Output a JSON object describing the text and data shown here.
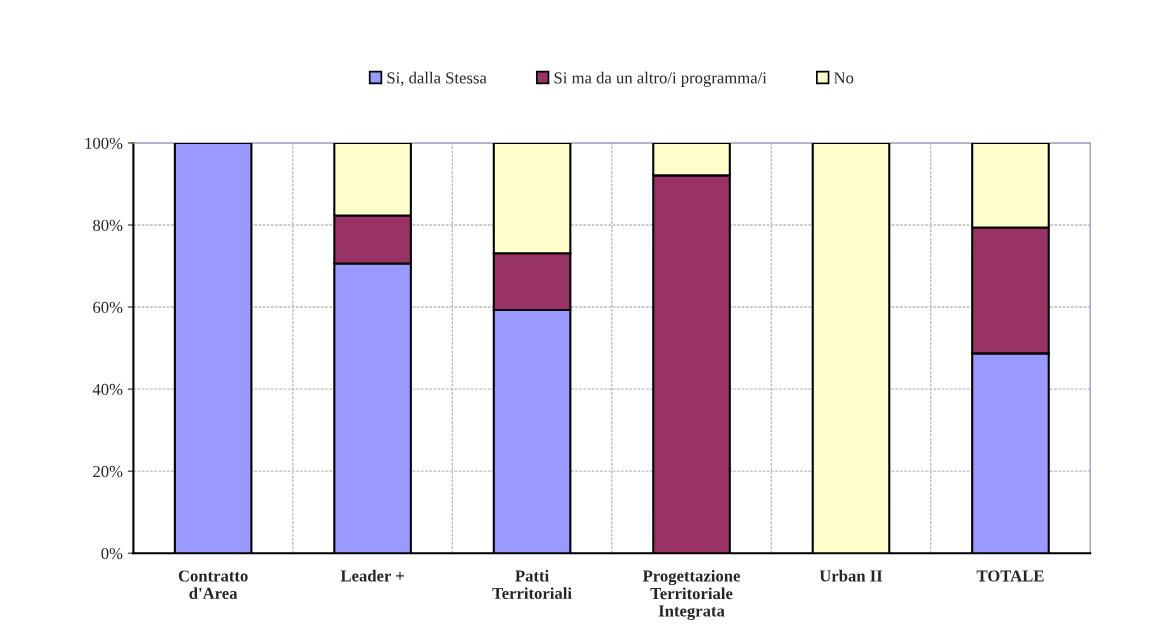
{
  "chart_data": {
    "type": "bar",
    "stacked": true,
    "categories": [
      "Contratto\nd'Area",
      "Leader +",
      "Patti\nTerritoriali",
      "Progettazione\nTerritoriale\nIntegrata",
      "Urban II",
      "TOTALE"
    ],
    "series": [
      {
        "name": "Si, dalla Stessa",
        "color": "#9999ff",
        "values": [
          100,
          70.6,
          59.3,
          0,
          0,
          48.7
        ]
      },
      {
        "name": "Si ma da un altro/i programma/i",
        "color": "#993366",
        "values": [
          0,
          11.7,
          13.8,
          92.1,
          0,
          30.7
        ]
      },
      {
        "name": "No",
        "color": "#ffffcc",
        "values": [
          0,
          17.7,
          26.9,
          7.9,
          100,
          20.6
        ]
      }
    ],
    "ylim": [
      0,
      100
    ],
    "yticks": [
      {
        "value": 0,
        "label": "0%"
      },
      {
        "value": 20,
        "label": "20%"
      },
      {
        "value": 40,
        "label": "40%"
      },
      {
        "value": 60,
        "label": "60%"
      },
      {
        "value": 80,
        "label": "80%"
      },
      {
        "value": 100,
        "label": "100%"
      }
    ],
    "grid": true,
    "legend": "top"
  }
}
